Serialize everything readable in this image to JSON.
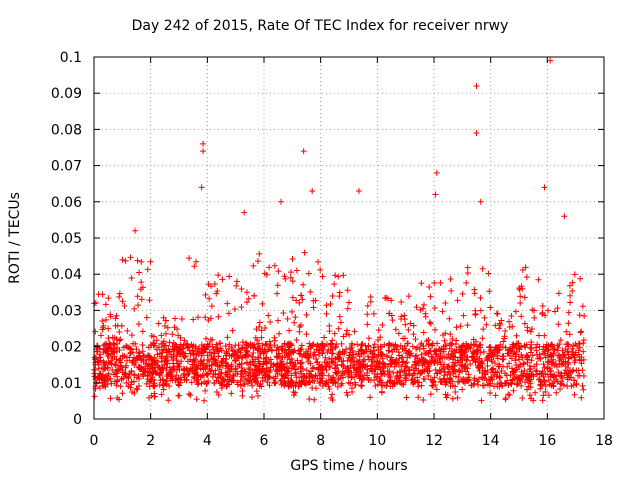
{
  "chart_data": {
    "type": "scatter",
    "title": "Day 242 of 2015, Rate Of TEC Index for receiver nrwy",
    "xlabel": "GPS time / hours",
    "ylabel": "ROTI / TECUs",
    "xlim": [
      0,
      18
    ],
    "ylim": [
      0,
      0.1
    ],
    "xticks": [
      0,
      2,
      4,
      6,
      8,
      10,
      12,
      14,
      16,
      18
    ],
    "yticks": [
      0,
      0.01,
      0.02,
      0.03,
      0.04,
      0.05,
      0.06,
      0.07,
      0.08,
      0.09,
      0.1
    ],
    "xtick_labels": [
      "0",
      "2",
      "4",
      "6",
      "8",
      "10",
      "12",
      "14",
      "16",
      "18"
    ],
    "ytick_labels": [
      "0",
      "0.01",
      "0.02",
      "0.03",
      "0.04",
      "0.05",
      "0.06",
      "0.07",
      "0.08",
      "0.09",
      "0.1"
    ],
    "grid": true,
    "marker": "+",
    "color": "#ff0000",
    "data_time_range_hours": [
      0.0,
      17.3
    ],
    "notable_points": [
      {
        "x": 3.85,
        "y": 0.076
      },
      {
        "x": 3.85,
        "y": 0.074
      },
      {
        "x": 3.8,
        "y": 0.064
      },
      {
        "x": 7.4,
        "y": 0.074
      },
      {
        "x": 7.7,
        "y": 0.063
      },
      {
        "x": 9.35,
        "y": 0.063
      },
      {
        "x": 12.1,
        "y": 0.068
      },
      {
        "x": 12.05,
        "y": 0.062
      },
      {
        "x": 13.5,
        "y": 0.092
      },
      {
        "x": 13.5,
        "y": 0.079
      },
      {
        "x": 13.65,
        "y": 0.06
      },
      {
        "x": 15.9,
        "y": 0.064
      },
      {
        "x": 16.1,
        "y": 0.099
      },
      {
        "x": 5.3,
        "y": 0.057
      },
      {
        "x": 6.6,
        "y": 0.06
      },
      {
        "x": 1.45,
        "y": 0.052
      },
      {
        "x": 16.6,
        "y": 0.056
      }
    ]
  }
}
